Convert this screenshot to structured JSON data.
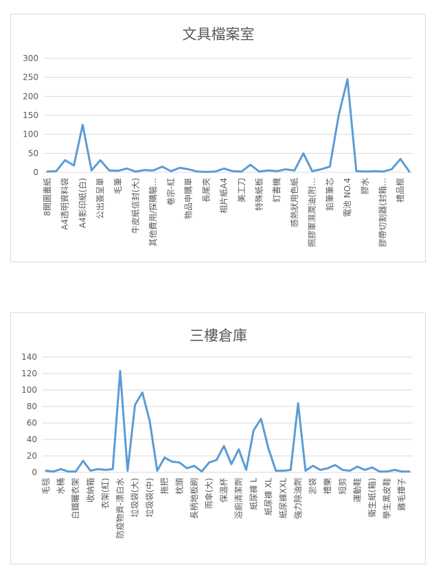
{
  "chart_data": [
    {
      "type": "line",
      "title": "文具檔案室",
      "ylim": [
        0,
        300
      ],
      "yticks": [
        0,
        50,
        100,
        150,
        200,
        250,
        300
      ],
      "grid": true,
      "legend": "none",
      "color": "#5b9bd5",
      "categories": [
        "8開圖畫紙",
        "",
        "A4透明資料袋",
        "",
        "A4影印紙(白)",
        "",
        "公出簽呈單",
        "",
        "毛筆",
        "",
        "牛皮紙信封(大)",
        "",
        "其他費用/探購驗…",
        "",
        "卷宗-紅",
        "",
        "物品申購單",
        "",
        "長尾夾",
        "",
        "相片紙A4",
        "",
        "美工刀",
        "",
        "特殊紙板",
        "",
        "釘書機",
        "",
        "感熱狀用色紙",
        "",
        "照膠軍濕潤油(附…",
        "",
        "鉛筆筆芯",
        "",
        "電池 NO.4",
        "",
        "膠水",
        "",
        "膠帶切割器(封箱…",
        "",
        "禮品框",
        ""
      ],
      "values": [
        2,
        3,
        32,
        18,
        125,
        5,
        32,
        5,
        4,
        10,
        2,
        6,
        5,
        15,
        3,
        12,
        8,
        2,
        1,
        2,
        10,
        3,
        2,
        20,
        2,
        5,
        3,
        8,
        5,
        50,
        3,
        8,
        15,
        150,
        245,
        3,
        2,
        3,
        2,
        8,
        35,
        2
      ]
    },
    {
      "type": "line",
      "title": "三樓倉庫",
      "ylim": [
        0,
        140
      ],
      "yticks": [
        0,
        20,
        40,
        60,
        80,
        100,
        120,
        140
      ],
      "grid": true,
      "legend": "none",
      "color": "#5b9bd5",
      "categories": [
        "毛毯",
        "",
        "水桶",
        "",
        "白鐵曬衣架",
        "",
        "收納箱",
        "",
        "衣架(紅)",
        "",
        "防疫物資-漂白水",
        "",
        "垃圾袋(大)",
        "",
        "垃圾袋(中)",
        "",
        "拖把",
        "",
        "枕頭",
        "",
        "長柄地板刷",
        "",
        "雨傘(大)",
        "",
        "保溫杯",
        "",
        "浴廁清潔劑",
        "",
        "紙尿褲 L",
        "",
        "紙尿褲 XL",
        "",
        "紙尿褲XXL",
        "",
        "強力除油劑",
        "",
        "淤袋",
        "",
        "禮樂",
        "",
        "短剪",
        "",
        "運動鞋",
        "",
        "衛生紙(箱)",
        "",
        "學生黑皮鞋",
        "",
        "雞毛撢子",
        ""
      ],
      "values": [
        2,
        1,
        4,
        1,
        1,
        14,
        2,
        4,
        3,
        4,
        123,
        2,
        82,
        97,
        62,
        2,
        18,
        13,
        12,
        5,
        8,
        1,
        12,
        15,
        32,
        10,
        28,
        3,
        51,
        65,
        29,
        2,
        2,
        3,
        84,
        2,
        8,
        3,
        5,
        9,
        3,
        2,
        7,
        3,
        6,
        1,
        1,
        3,
        1,
        1
      ]
    }
  ]
}
